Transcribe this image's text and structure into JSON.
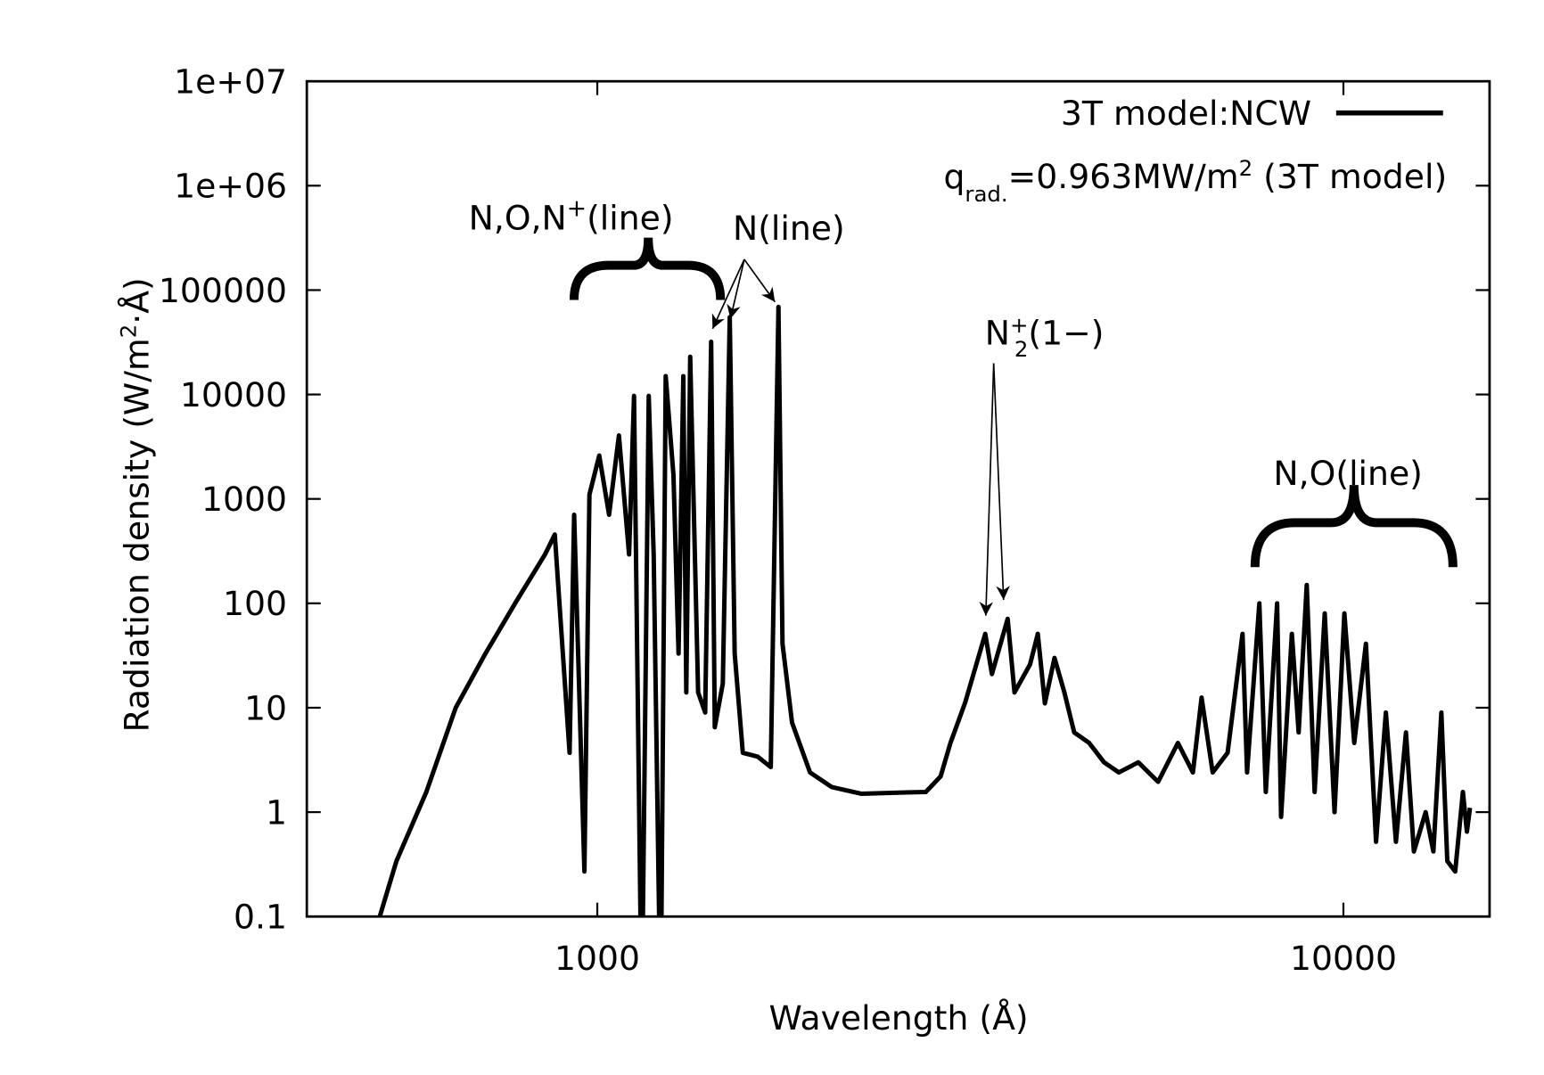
{
  "chart_data": {
    "type": "line",
    "xlabel": "Wavelength (Å)",
    "ylabel_parts": [
      "Radiation density (W/m",
      "2",
      "·Å)"
    ],
    "xscale": "log",
    "yscale": "log",
    "xlim": [
      408,
      15700
    ],
    "ylim": [
      0.1,
      10000000
    ],
    "xticks": [
      1000,
      10000
    ],
    "yticks": [
      0.1,
      1,
      10,
      100,
      1000,
      10000,
      100000,
      {
        "value": 1000000,
        "label": "1e+06"
      },
      {
        "value": 10000000,
        "label": "1e+07"
      }
    ],
    "legend": "upper right",
    "note_parts": [
      "q",
      "rad.",
      "=0.963MW/m",
      "2",
      " (3T model)"
    ],
    "annotations": [
      {
        "parts": [
          "N,O,N",
          "+",
          "(line)"
        ]
      },
      {
        "parts": [
          "N(line)"
        ]
      },
      {
        "parts": [
          "N",
          "+",
          "2",
          "(1−)"
        ]
      },
      {
        "parts": [
          "N,O(line)"
        ]
      }
    ],
    "x": [
      511,
      538,
      590,
      646,
      708,
      776,
      851,
      877,
      918,
      931,
      961,
      976,
      1006,
      1037,
      1069,
      1103,
      1120,
      1147,
      1172,
      1190,
      1216,
      1235,
      1265,
      1285,
      1304,
      1316,
      1332,
      1365,
      1395,
      1421,
      1437,
      1473,
      1505,
      1528,
      1567,
      1640,
      1708,
      1749,
      1771,
      1824,
      1928,
      2061,
      2258,
      2475,
      2756,
      2885,
      2974,
      3112,
      3311,
      3380,
      3548,
      3624,
      3802,
      3894,
      3980,
      4100,
      4227,
      4357,
      4563,
      4777,
      5000,
      5310,
      5645,
      6000,
      6285,
      6455,
      6680,
      6995,
      7325,
      7428,
      7715,
      7870,
      8150,
      8250,
      8530,
      8710,
      8930,
      9150,
      9440,
      9730,
      10030,
      10340,
      10720,
      11060,
      11400,
      11760,
      12130,
      12430,
      12890,
      13200,
      13530,
      13780,
      14120,
      14460,
      14640,
      14780
    ],
    "series": [
      {
        "name": "3T model:NCW",
        "color": "#000000",
        "values": [
          0.1,
          0.34,
          1.56,
          10,
          33,
          100,
          294,
          456,
          3.7,
          705,
          0.27,
          1100,
          2600,
          705,
          4050,
          294,
          9700,
          0.01,
          9700,
          294,
          0.01,
          15000,
          1690,
          33,
          15000,
          14,
          23000,
          14,
          9,
          32000,
          6.5,
          17,
          55000,
          33,
          3.7,
          3.4,
          2.7,
          69000,
          41,
          7.2,
          2.4,
          1.74,
          1.5,
          1.53,
          1.56,
          2.2,
          4.6,
          11.2,
          51,
          21,
          71,
          14,
          26,
          51,
          11,
          30,
          14,
          5.8,
          4.6,
          3,
          2.4,
          3,
          1.95,
          4.6,
          2.4,
          12.5,
          2.4,
          3.7,
          51,
          2.4,
          100,
          1.56,
          100,
          0.9,
          51,
          5.8,
          150,
          1.56,
          80,
          1,
          80,
          4.6,
          41,
          0.52,
          9,
          0.52,
          5.8,
          0.42,
          1,
          0.42,
          9,
          0.34,
          0.27,
          1.56,
          0.65,
          1.1
        ]
      }
    ]
  }
}
